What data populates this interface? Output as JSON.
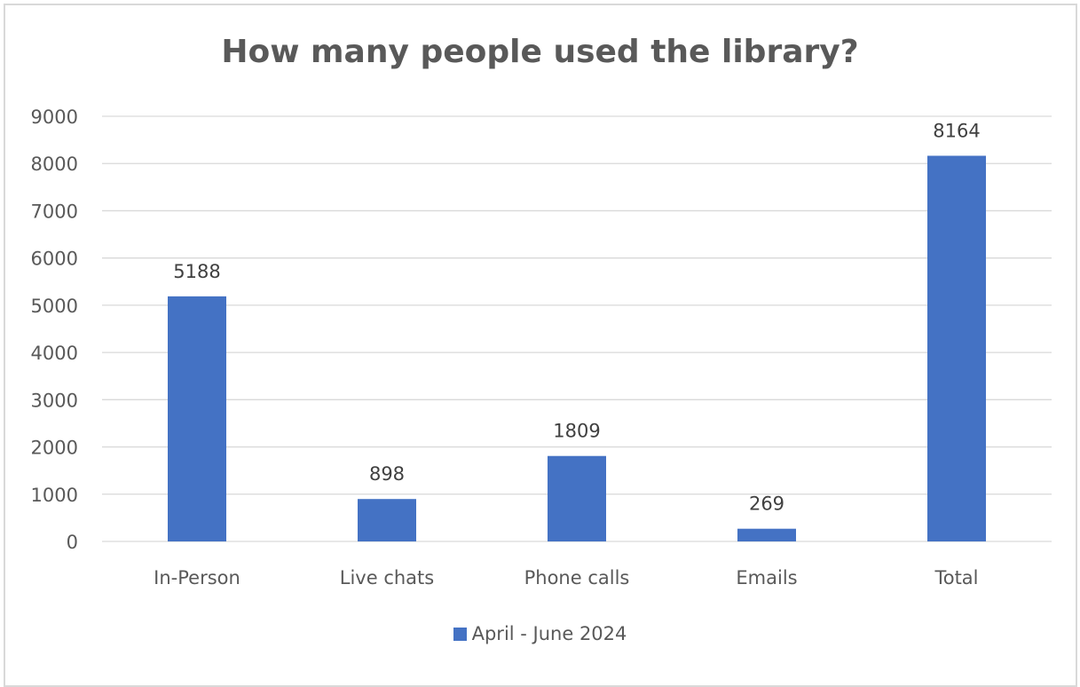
{
  "chart_data": {
    "type": "bar",
    "title": "How many people used the library?",
    "categories": [
      "In-Person",
      "Live chats",
      "Phone calls",
      "Emails",
      "Total"
    ],
    "series": [
      {
        "name": "April - June 2024",
        "values": [
          5188,
          898,
          1809,
          269,
          8164
        ],
        "color": "#4472c4"
      }
    ],
    "data_labels": [
      "5188",
      "898",
      "1809",
      "269",
      "8164"
    ],
    "yticks": [
      "0",
      "1000",
      "2000",
      "3000",
      "4000",
      "5000",
      "6000",
      "7000",
      "8000",
      "9000"
    ],
    "ylim": [
      0,
      9000
    ],
    "xlabel": "",
    "ylabel": "",
    "grid": true,
    "legend_position": "bottom"
  }
}
